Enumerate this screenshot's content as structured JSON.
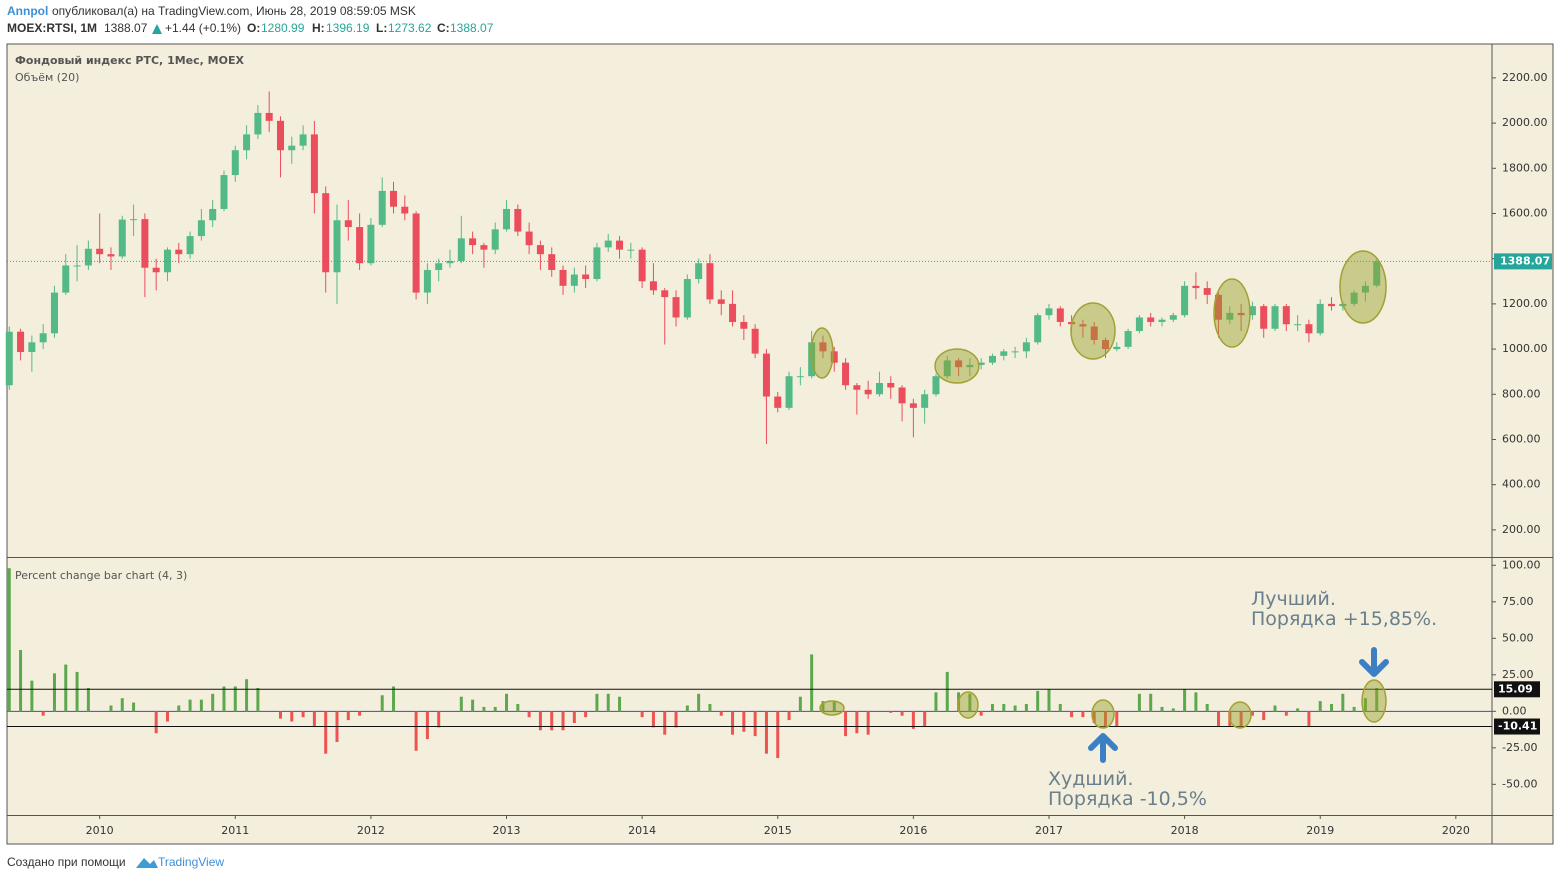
{
  "header": {
    "author": "Annpol",
    "published": "опубликовал(а) на TradingView.com, Июнь 28, 2019 08:59:05 MSK",
    "symbol": "MOEX:RTSI, 1M",
    "change": "+1.44 (+0.1%)",
    "o": "O:",
    "h": "H:",
    "l": "L:",
    "c": "C:"
  },
  "footer": {
    "text": "Создано при помощи",
    "brand": "TradingView"
  },
  "chart_data": [
    {
      "type": "candlestick",
      "title": "Фондовый индекс РТС, 1Мес, MOEX",
      "subtitle": "Объём (20)",
      "up_color": "#53b987",
      "down_color": "#eb4d5c",
      "last_price_line": true,
      "xlim": [
        -0.2,
        131.2
      ],
      "ylim": [
        80,
        2350
      ],
      "yticks": [
        {
          "value": 200,
          "label": "200.00"
        },
        {
          "value": 400,
          "label": "400.00"
        },
        {
          "value": 600,
          "label": "600.00"
        },
        {
          "value": 800,
          "label": "800.00"
        },
        {
          "value": 1000,
          "label": "1000.00"
        },
        {
          "value": 1200,
          "label": "1200.00"
        },
        {
          "value": 1400,
          "label": "1400.00"
        },
        {
          "value": 1600,
          "label": "1600.00"
        },
        {
          "value": 1800,
          "label": "1800.00"
        },
        {
          "value": 2000,
          "label": "2000.00"
        },
        {
          "value": 2200,
          "label": "2200.00"
        }
      ],
      "candles": [
        [
          840,
          1100,
          820,
          1077
        ],
        [
          1077,
          1090,
          950,
          987
        ],
        [
          987,
          1060,
          900,
          1030
        ],
        [
          1030,
          1110,
          1000,
          1070
        ],
        [
          1070,
          1280,
          1050,
          1250
        ],
        [
          1250,
          1420,
          1240,
          1370
        ],
        [
          1370,
          1460,
          1300,
          1370
        ],
        [
          1370,
          1480,
          1350,
          1444
        ],
        [
          1444,
          1600,
          1380,
          1420
        ],
        [
          1420,
          1450,
          1350,
          1410
        ],
        [
          1410,
          1590,
          1400,
          1573
        ],
        [
          1573,
          1640,
          1500,
          1575
        ],
        [
          1575,
          1600,
          1230,
          1360
        ],
        [
          1360,
          1400,
          1260,
          1340
        ],
        [
          1340,
          1450,
          1300,
          1440
        ],
        [
          1440,
          1470,
          1380,
          1420
        ],
        [
          1420,
          1520,
          1400,
          1500
        ],
        [
          1500,
          1620,
          1480,
          1570
        ],
        [
          1570,
          1660,
          1540,
          1620
        ],
        [
          1620,
          1790,
          1610,
          1770
        ],
        [
          1770,
          1900,
          1740,
          1880
        ],
        [
          1880,
          1990,
          1840,
          1950
        ],
        [
          1950,
          2080,
          1930,
          2045
        ],
        [
          2045,
          2140,
          1960,
          2010
        ],
        [
          2010,
          2030,
          1760,
          1880
        ],
        [
          1880,
          1940,
          1820,
          1900
        ],
        [
          1900,
          1990,
          1880,
          1950
        ],
        [
          1950,
          2010,
          1600,
          1690
        ],
        [
          1690,
          1720,
          1250,
          1340
        ],
        [
          1340,
          1640,
          1200,
          1570
        ],
        [
          1570,
          1660,
          1480,
          1540
        ],
        [
          1540,
          1600,
          1350,
          1380
        ],
        [
          1380,
          1580,
          1370,
          1550
        ],
        [
          1550,
          1760,
          1540,
          1700
        ],
        [
          1700,
          1740,
          1600,
          1630
        ],
        [
          1630,
          1680,
          1570,
          1600
        ],
        [
          1600,
          1610,
          1220,
          1250
        ],
        [
          1250,
          1380,
          1200,
          1350
        ],
        [
          1350,
          1400,
          1300,
          1380
        ],
        [
          1380,
          1440,
          1360,
          1390
        ],
        [
          1390,
          1590,
          1380,
          1490
        ],
        [
          1490,
          1520,
          1420,
          1460
        ],
        [
          1460,
          1470,
          1360,
          1440
        ],
        [
          1440,
          1560,
          1420,
          1530
        ],
        [
          1530,
          1660,
          1520,
          1620
        ],
        [
          1620,
          1640,
          1500,
          1520
        ],
        [
          1520,
          1560,
          1420,
          1460
        ],
        [
          1460,
          1480,
          1350,
          1420
        ],
        [
          1420,
          1450,
          1320,
          1350
        ],
        [
          1350,
          1370,
          1240,
          1280
        ],
        [
          1280,
          1360,
          1250,
          1330
        ],
        [
          1330,
          1370,
          1270,
          1310
        ],
        [
          1310,
          1470,
          1300,
          1450
        ],
        [
          1450,
          1510,
          1430,
          1480
        ],
        [
          1480,
          1500,
          1400,
          1440
        ],
        [
          1440,
          1470,
          1400,
          1440
        ],
        [
          1440,
          1450,
          1270,
          1300
        ],
        [
          1300,
          1380,
          1240,
          1260
        ],
        [
          1260,
          1270,
          1020,
          1230
        ],
        [
          1230,
          1260,
          1100,
          1140
        ],
        [
          1140,
          1330,
          1130,
          1310
        ],
        [
          1310,
          1400,
          1290,
          1380
        ],
        [
          1380,
          1420,
          1200,
          1220
        ],
        [
          1220,
          1260,
          1150,
          1200
        ],
        [
          1200,
          1260,
          1100,
          1120
        ],
        [
          1120,
          1150,
          1040,
          1090
        ],
        [
          1090,
          1110,
          960,
          980
        ],
        [
          980,
          1000,
          580,
          790
        ],
        [
          790,
          810,
          720,
          740
        ],
        [
          740,
          900,
          730,
          880
        ],
        [
          880,
          920,
          840,
          880
        ],
        [
          880,
          1080,
          870,
          1030
        ],
        [
          1030,
          1060,
          960,
          990
        ],
        [
          990,
          1010,
          900,
          940
        ],
        [
          940,
          960,
          820,
          840
        ],
        [
          840,
          850,
          710,
          820
        ],
        [
          820,
          860,
          780,
          800
        ],
        [
          800,
          900,
          790,
          850
        ],
        [
          850,
          880,
          780,
          830
        ],
        [
          830,
          840,
          680,
          760
        ],
        [
          760,
          780,
          610,
          740
        ],
        [
          740,
          820,
          670,
          800
        ],
        [
          800,
          890,
          790,
          880
        ],
        [
          880,
          970,
          870,
          950
        ],
        [
          950,
          960,
          880,
          920
        ],
        [
          920,
          960,
          880,
          930
        ],
        [
          930,
          960,
          910,
          940
        ],
        [
          940,
          980,
          930,
          970
        ],
        [
          970,
          1000,
          950,
          990
        ],
        [
          990,
          1010,
          960,
          990
        ],
        [
          990,
          1050,
          960,
          1030
        ],
        [
          1030,
          1160,
          1020,
          1150
        ],
        [
          1150,
          1200,
          1130,
          1180
        ],
        [
          1180,
          1190,
          1100,
          1120
        ],
        [
          1120,
          1150,
          1080,
          1110
        ],
        [
          1110,
          1130,
          1050,
          1100
        ],
        [
          1100,
          1120,
          1020,
          1040
        ],
        [
          1040,
          1050,
          960,
          1000
        ],
        [
          1000,
          1030,
          990,
          1010
        ],
        [
          1010,
          1090,
          1000,
          1080
        ],
        [
          1080,
          1150,
          1070,
          1140
        ],
        [
          1140,
          1160,
          1100,
          1120
        ],
        [
          1120,
          1140,
          1100,
          1130
        ],
        [
          1130,
          1160,
          1120,
          1150
        ],
        [
          1150,
          1300,
          1140,
          1280
        ],
        [
          1280,
          1340,
          1220,
          1270
        ],
        [
          1270,
          1300,
          1200,
          1240
        ],
        [
          1240,
          1250,
          1050,
          1130
        ],
        [
          1130,
          1190,
          1110,
          1160
        ],
        [
          1160,
          1200,
          1080,
          1150
        ],
        [
          1150,
          1210,
          1130,
          1190
        ],
        [
          1190,
          1200,
          1050,
          1090
        ],
        [
          1090,
          1200,
          1080,
          1190
        ],
        [
          1190,
          1200,
          1080,
          1110
        ],
        [
          1110,
          1150,
          1080,
          1110
        ],
        [
          1110,
          1130,
          1030,
          1070
        ],
        [
          1070,
          1220,
          1060,
          1200
        ],
        [
          1200,
          1230,
          1170,
          1190
        ],
        [
          1190,
          1210,
          1170,
          1200
        ],
        [
          1200,
          1260,
          1190,
          1250
        ],
        [
          1250,
          1300,
          1210,
          1280
        ],
        [
          1280.99,
          1396.19,
          1273.62,
          1388.07
        ]
      ]
    },
    {
      "type": "bar",
      "title": "Percent change bar chart (4, 3)",
      "up_color": "#5da84e",
      "down_color": "#ef5350",
      "levels": [
        15.09,
        -10.41
      ],
      "annotations": [
        "Лучший.",
        "Порядка +15,85%.",
        "Худший.",
        "Порядка -10,5%"
      ],
      "xlim": [
        -0.2,
        131.2
      ],
      "ylim": [
        -71,
        105
      ],
      "yticks": [
        {
          "value": 100,
          "label": "100.00"
        },
        {
          "value": 75,
          "label": "75.00"
        },
        {
          "value": 50,
          "label": "50.00"
        },
        {
          "value": 25,
          "label": "25.00"
        },
        {
          "value": 0,
          "label": "0.00"
        },
        {
          "value": -25,
          "label": "-25.00"
        },
        {
          "value": -50,
          "label": "-50.00"
        }
      ],
      "xticks": [
        {
          "value": 8,
          "label": "2010"
        },
        {
          "value": 20,
          "label": "2011"
        },
        {
          "value": 32,
          "label": "2012"
        },
        {
          "value": 44,
          "label": "2013"
        },
        {
          "value": 56,
          "label": "2014"
        },
        {
          "value": 68,
          "label": "2015"
        },
        {
          "value": 80,
          "label": "2016"
        },
        {
          "value": 92,
          "label": "2017"
        },
        {
          "value": 104,
          "label": "2018"
        },
        {
          "value": 116,
          "label": "2019"
        },
        {
          "value": 128,
          "label": "2020"
        }
      ],
      "values": [
        98,
        42,
        21,
        -3,
        26,
        32,
        27,
        16,
        0,
        4,
        9,
        6,
        0,
        -15,
        -7,
        4,
        8,
        8,
        12,
        17,
        17,
        22,
        16,
        0,
        -5,
        -7,
        -4,
        -10,
        -29,
        -21,
        -6,
        -3,
        0,
        11,
        17,
        0,
        -27,
        -19,
        -11,
        0,
        10,
        8,
        3,
        3,
        12,
        5,
        -4,
        -13,
        -13,
        -13,
        -8,
        -4,
        12,
        12,
        10,
        0,
        -4,
        -11,
        -16,
        -11,
        4,
        12,
        5,
        -3,
        -16,
        -14,
        -17,
        -29,
        -32,
        -6,
        10,
        39,
        7,
        7,
        -17,
        -15,
        -16,
        0,
        -1,
        -3,
        -12,
        -10,
        13,
        27,
        13,
        12,
        -3,
        5,
        5,
        4,
        5,
        14,
        15,
        5,
        -4,
        -4,
        -8,
        -10,
        -10,
        0,
        12,
        12,
        3,
        2,
        15,
        13,
        5,
        -10,
        -10,
        -10,
        -3,
        -6,
        4,
        -3,
        2,
        -10,
        7,
        5,
        12,
        3,
        9,
        16
      ]
    }
  ]
}
